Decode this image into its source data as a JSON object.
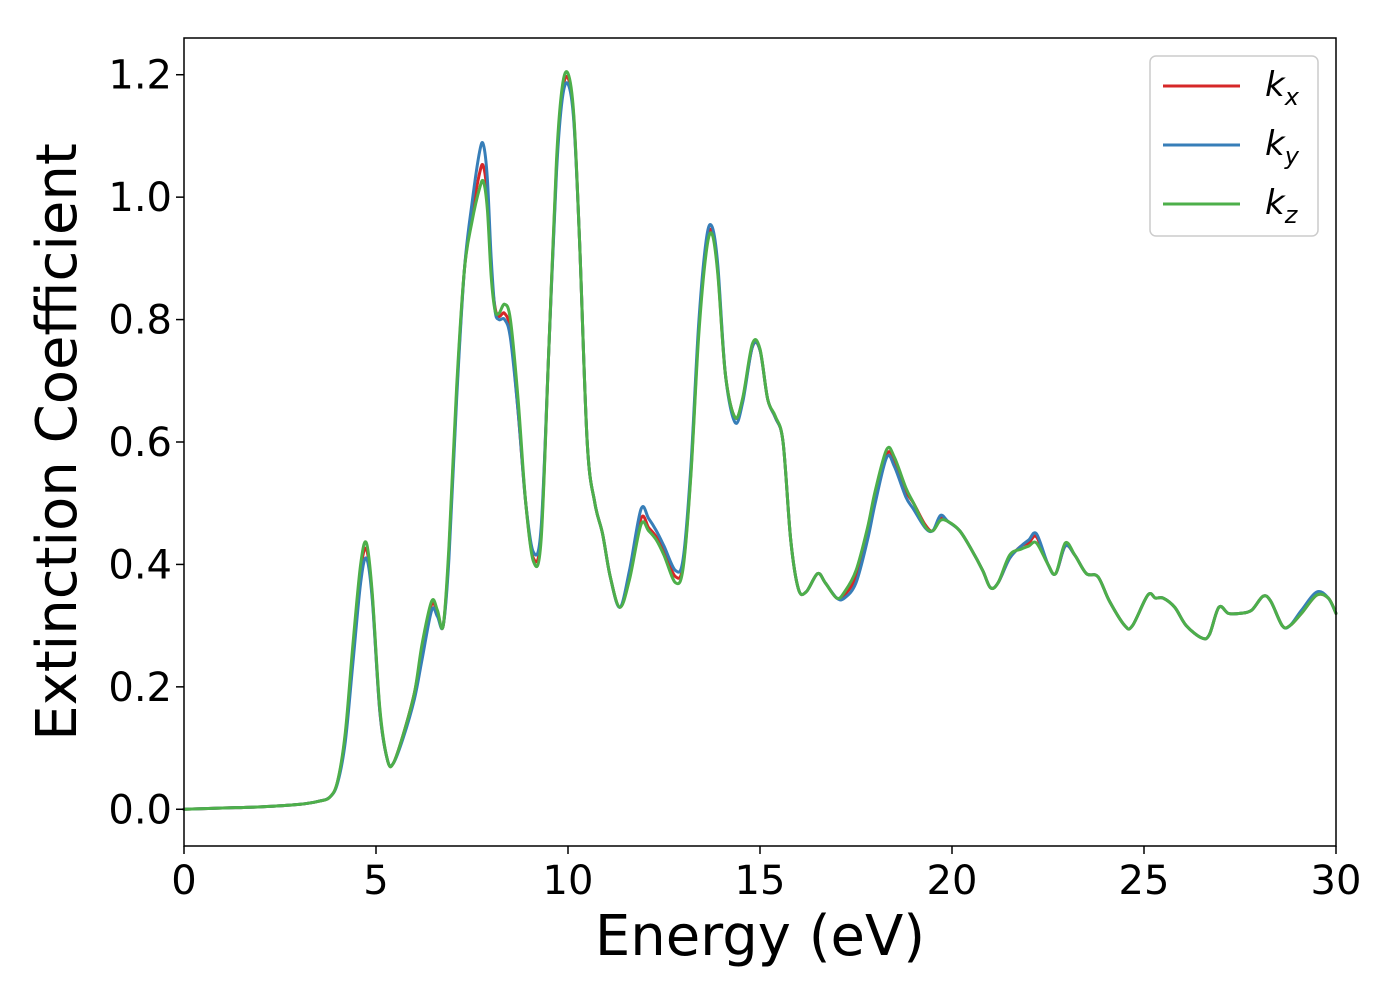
{
  "chart_data": {
    "type": "line",
    "xlabel": "Energy (eV)",
    "ylabel": "Extinction Coefficient",
    "xlim": [
      0,
      30
    ],
    "ylim": [
      -0.06,
      1.26
    ],
    "xticks": [
      0,
      5,
      10,
      15,
      20,
      25,
      30
    ],
    "xtick_labels": [
      "0",
      "5",
      "10",
      "15",
      "20",
      "25",
      "30"
    ],
    "yticks": [
      0.0,
      0.2,
      0.4,
      0.6,
      0.8,
      1.0,
      1.2
    ],
    "ytick_labels": [
      "0.0",
      "0.2",
      "0.4",
      "0.6",
      "0.8",
      "1.0",
      "1.2"
    ],
    "grid": false,
    "legend_position": "top-right",
    "series": [
      {
        "name": "k",
        "subscript": "x",
        "color": "#d62728",
        "x": [
          0,
          1,
          2,
          3,
          3.5,
          3.8,
          4.0,
          4.2,
          4.4,
          4.6,
          4.75,
          4.9,
          5.1,
          5.3,
          5.45,
          5.7,
          6.0,
          6.2,
          6.45,
          6.6,
          6.75,
          6.9,
          7.1,
          7.3,
          7.5,
          7.7,
          7.8,
          7.9,
          8.0,
          8.1,
          8.2,
          8.35,
          8.5,
          8.7,
          8.9,
          9.1,
          9.3,
          9.5,
          9.7,
          9.85,
          10.0,
          10.15,
          10.3,
          10.5,
          10.7,
          10.9,
          11.1,
          11.35,
          11.6,
          11.9,
          12.1,
          12.3,
          12.5,
          12.8,
          13.0,
          13.2,
          13.4,
          13.6,
          13.75,
          13.9,
          14.1,
          14.35,
          14.55,
          14.8,
          15.0,
          15.2,
          15.4,
          15.6,
          15.8,
          16.0,
          16.2,
          16.5,
          16.7,
          17.0,
          17.2,
          17.5,
          17.8,
          18.0,
          18.3,
          18.5,
          18.8,
          19.0,
          19.3,
          19.5,
          19.7,
          19.9,
          20.2,
          20.5,
          20.8,
          21.0,
          21.2,
          21.5,
          21.8,
          22.0,
          22.2,
          22.5,
          22.7,
          22.95,
          23.2,
          23.5,
          23.8,
          24.1,
          24.5,
          24.7,
          25.1,
          25.3,
          25.5,
          25.8,
          26.1,
          26.5,
          26.7,
          26.95,
          27.2,
          27.5,
          27.8,
          28.1,
          28.3,
          28.6,
          28.8,
          29.1,
          29.5,
          29.8,
          30
        ],
        "y": [
          0.0,
          0.002,
          0.004,
          0.008,
          0.013,
          0.02,
          0.045,
          0.12,
          0.26,
          0.39,
          0.425,
          0.35,
          0.16,
          0.08,
          0.075,
          0.12,
          0.19,
          0.26,
          0.335,
          0.32,
          0.3,
          0.42,
          0.68,
          0.88,
          0.97,
          1.04,
          1.05,
          1.0,
          0.88,
          0.82,
          0.805,
          0.81,
          0.78,
          0.65,
          0.5,
          0.41,
          0.45,
          0.75,
          1.05,
          1.17,
          1.195,
          1.13,
          0.93,
          0.6,
          0.5,
          0.45,
          0.38,
          0.33,
          0.38,
          0.475,
          0.46,
          0.445,
          0.42,
          0.38,
          0.4,
          0.55,
          0.78,
          0.92,
          0.945,
          0.88,
          0.71,
          0.64,
          0.67,
          0.755,
          0.75,
          0.67,
          0.64,
          0.6,
          0.44,
          0.36,
          0.355,
          0.385,
          0.37,
          0.345,
          0.35,
          0.38,
          0.45,
          0.51,
          0.58,
          0.57,
          0.52,
          0.5,
          0.465,
          0.455,
          0.475,
          0.47,
          0.455,
          0.425,
          0.39,
          0.362,
          0.37,
          0.41,
          0.43,
          0.435,
          0.445,
          0.4,
          0.385,
          0.43,
          0.415,
          0.385,
          0.38,
          0.34,
          0.3,
          0.3,
          0.35,
          0.345,
          0.345,
          0.33,
          0.3,
          0.28,
          0.285,
          0.33,
          0.32,
          0.32,
          0.325,
          0.348,
          0.34,
          0.3,
          0.3,
          0.32,
          0.35,
          0.345,
          0.32
        ]
      },
      {
        "name": "k",
        "subscript": "y",
        "color": "#377eb8",
        "x": [
          0,
          1,
          2,
          3,
          3.5,
          3.8,
          4.0,
          4.2,
          4.4,
          4.6,
          4.75,
          4.9,
          5.1,
          5.3,
          5.45,
          5.7,
          6.0,
          6.2,
          6.45,
          6.6,
          6.75,
          6.9,
          7.1,
          7.3,
          7.5,
          7.7,
          7.8,
          7.9,
          8.0,
          8.1,
          8.2,
          8.35,
          8.5,
          8.7,
          8.9,
          9.1,
          9.3,
          9.5,
          9.7,
          9.85,
          10.0,
          10.15,
          10.3,
          10.5,
          10.7,
          10.9,
          11.1,
          11.35,
          11.6,
          11.9,
          12.1,
          12.3,
          12.5,
          12.8,
          13.0,
          13.2,
          13.4,
          13.6,
          13.75,
          13.9,
          14.1,
          14.35,
          14.55,
          14.8,
          15.0,
          15.2,
          15.4,
          15.6,
          15.8,
          16.0,
          16.2,
          16.5,
          16.7,
          17.0,
          17.2,
          17.5,
          17.8,
          18.0,
          18.3,
          18.5,
          18.8,
          19.0,
          19.3,
          19.5,
          19.7,
          19.9,
          20.2,
          20.5,
          20.8,
          21.0,
          21.2,
          21.5,
          21.8,
          22.0,
          22.2,
          22.5,
          22.7,
          22.95,
          23.2,
          23.5,
          23.8,
          24.1,
          24.5,
          24.7,
          25.1,
          25.3,
          25.5,
          25.8,
          26.1,
          26.5,
          26.7,
          26.95,
          27.2,
          27.5,
          27.8,
          28.1,
          28.3,
          28.6,
          28.8,
          29.1,
          29.5,
          29.8,
          30
        ],
        "y": [
          0.0,
          0.002,
          0.004,
          0.008,
          0.013,
          0.02,
          0.043,
          0.11,
          0.24,
          0.37,
          0.41,
          0.345,
          0.16,
          0.08,
          0.075,
          0.115,
          0.18,
          0.245,
          0.325,
          0.315,
          0.3,
          0.41,
          0.67,
          0.88,
          0.99,
          1.075,
          1.085,
          1.03,
          0.9,
          0.815,
          0.8,
          0.8,
          0.77,
          0.65,
          0.5,
          0.42,
          0.46,
          0.75,
          1.04,
          1.16,
          1.185,
          1.125,
          0.93,
          0.6,
          0.5,
          0.45,
          0.38,
          0.33,
          0.39,
          0.49,
          0.475,
          0.455,
          0.43,
          0.39,
          0.41,
          0.56,
          0.79,
          0.93,
          0.952,
          0.89,
          0.71,
          0.632,
          0.665,
          0.755,
          0.75,
          0.67,
          0.64,
          0.6,
          0.44,
          0.36,
          0.355,
          0.385,
          0.37,
          0.345,
          0.345,
          0.37,
          0.44,
          0.5,
          0.575,
          0.56,
          0.51,
          0.49,
          0.46,
          0.455,
          0.48,
          0.47,
          0.455,
          0.425,
          0.39,
          0.362,
          0.37,
          0.41,
          0.43,
          0.44,
          0.45,
          0.4,
          0.385,
          0.43,
          0.415,
          0.385,
          0.38,
          0.34,
          0.3,
          0.3,
          0.35,
          0.345,
          0.345,
          0.33,
          0.3,
          0.28,
          0.285,
          0.33,
          0.32,
          0.32,
          0.325,
          0.348,
          0.34,
          0.3,
          0.3,
          0.325,
          0.355,
          0.345,
          0.32
        ]
      },
      {
        "name": "k",
        "subscript": "z",
        "color": "#4daf4a",
        "x": [
          0,
          1,
          2,
          3,
          3.5,
          3.8,
          4.0,
          4.2,
          4.4,
          4.6,
          4.75,
          4.9,
          5.1,
          5.3,
          5.45,
          5.7,
          6.0,
          6.2,
          6.45,
          6.6,
          6.75,
          6.9,
          7.1,
          7.3,
          7.5,
          7.7,
          7.8,
          7.9,
          8.0,
          8.1,
          8.2,
          8.35,
          8.5,
          8.7,
          8.9,
          9.1,
          9.3,
          9.5,
          9.7,
          9.85,
          10.0,
          10.15,
          10.3,
          10.5,
          10.7,
          10.9,
          11.1,
          11.35,
          11.6,
          11.9,
          12.1,
          12.3,
          12.5,
          12.8,
          13.0,
          13.2,
          13.4,
          13.6,
          13.75,
          13.9,
          14.1,
          14.35,
          14.55,
          14.8,
          15.0,
          15.2,
          15.4,
          15.6,
          15.8,
          16.0,
          16.2,
          16.5,
          16.7,
          17.0,
          17.2,
          17.5,
          17.8,
          18.0,
          18.3,
          18.5,
          18.8,
          19.0,
          19.3,
          19.5,
          19.7,
          19.9,
          20.2,
          20.5,
          20.8,
          21.0,
          21.2,
          21.5,
          21.8,
          22.0,
          22.2,
          22.5,
          22.7,
          22.95,
          23.2,
          23.5,
          23.8,
          24.1,
          24.5,
          24.7,
          25.1,
          25.3,
          25.5,
          25.8,
          26.1,
          26.5,
          26.7,
          26.95,
          27.2,
          27.5,
          27.8,
          28.1,
          28.3,
          28.6,
          28.8,
          29.1,
          29.5,
          29.8,
          30
        ],
        "y": [
          0.0,
          0.002,
          0.004,
          0.008,
          0.013,
          0.02,
          0.046,
          0.125,
          0.27,
          0.4,
          0.435,
          0.355,
          0.165,
          0.08,
          0.075,
          0.12,
          0.19,
          0.27,
          0.34,
          0.325,
          0.3,
          0.43,
          0.69,
          0.88,
          0.96,
          1.015,
          1.025,
          0.98,
          0.87,
          0.815,
          0.81,
          0.825,
          0.8,
          0.67,
          0.5,
          0.405,
          0.44,
          0.75,
          1.06,
          1.18,
          1.202,
          1.135,
          0.93,
          0.6,
          0.5,
          0.45,
          0.38,
          0.33,
          0.375,
          0.465,
          0.455,
          0.44,
          0.415,
          0.37,
          0.395,
          0.545,
          0.77,
          0.91,
          0.94,
          0.875,
          0.71,
          0.64,
          0.672,
          0.76,
          0.752,
          0.67,
          0.642,
          0.6,
          0.44,
          0.36,
          0.355,
          0.385,
          0.37,
          0.345,
          0.355,
          0.39,
          0.46,
          0.52,
          0.588,
          0.575,
          0.525,
          0.5,
          0.462,
          0.455,
          0.472,
          0.47,
          0.455,
          0.425,
          0.39,
          0.362,
          0.37,
          0.415,
          0.425,
          0.43,
          0.435,
          0.4,
          0.385,
          0.435,
          0.415,
          0.385,
          0.38,
          0.34,
          0.3,
          0.3,
          0.35,
          0.345,
          0.345,
          0.33,
          0.3,
          0.28,
          0.285,
          0.33,
          0.32,
          0.32,
          0.325,
          0.348,
          0.34,
          0.3,
          0.3,
          0.32,
          0.35,
          0.345,
          0.32
        ]
      }
    ]
  }
}
